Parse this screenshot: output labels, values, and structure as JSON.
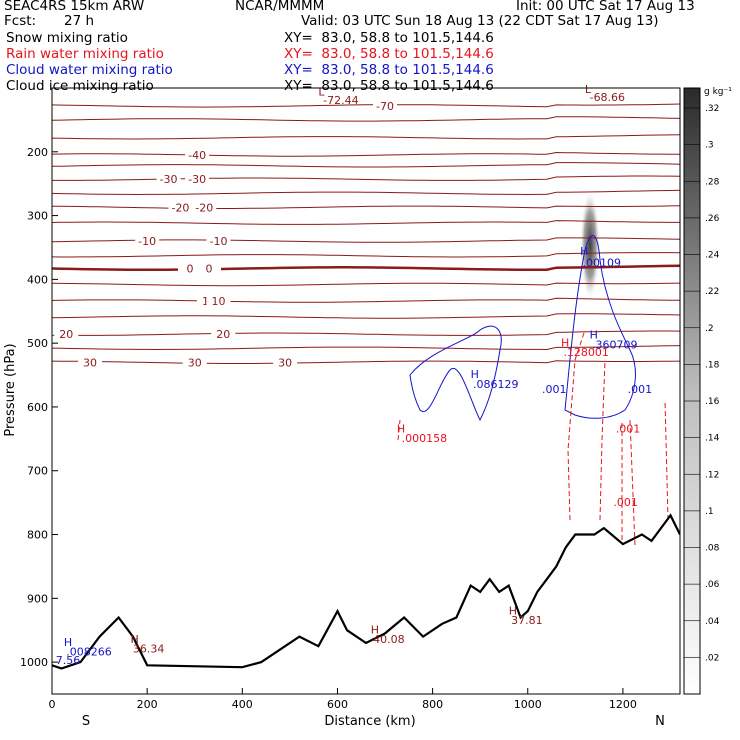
{
  "header": {
    "model": "SEAC4RS 15km ARW",
    "org": "NCAR/MMMM",
    "init": "Init: 00 UTC Sat 17 Aug 13",
    "fcst_label": "Fcst:",
    "fcst_value": "27 h",
    "valid": "Valid: 03 UTC Sun 18 Aug 13 (22 CDT Sat 17 Aug 13)",
    "fields": [
      {
        "name": "Snow mixing ratio",
        "xy": "XY=  83.0, 58.8 to 101.5,144.6",
        "color": "#000000"
      },
      {
        "name": "Rain water mixing ratio",
        "xy": "XY=  83.0, 58.8 to 101.5,144.6",
        "color": "#e8141e"
      },
      {
        "name": "Cloud water mixing ratio",
        "xy": "XY=  83.0, 58.8 to 101.5,144.6",
        "color": "#1414c8"
      },
      {
        "name": "Cloud ice mixing ratio",
        "xy": "XY=  83.0, 58.8 to 101.5,144.6",
        "color": "#000000"
      }
    ]
  },
  "chart_data": {
    "type": "cross-section",
    "xlabel": "Distance (km)",
    "ylabel": "Pressure (hPa)",
    "xlim": [
      0,
      1320
    ],
    "ylim": [
      1050,
      100
    ],
    "x_ticks": [
      0,
      200,
      400,
      600,
      800,
      1000,
      1200
    ],
    "y_ticks": [
      200,
      300,
      400,
      500,
      600,
      700,
      800,
      900,
      1000
    ],
    "x_end_labels": {
      "left": "S",
      "right": "N"
    },
    "colorbar": {
      "unit": "g kg⁻¹",
      "ticks": [
        ".02",
        ".04",
        ".06",
        ".08",
        ".1",
        ".12",
        ".14",
        ".16",
        ".18",
        ".2",
        ".22",
        ".24",
        ".26",
        ".28",
        ".3",
        ".32"
      ]
    },
    "temperature_contours": [
      {
        "level": -70,
        "p": 128,
        "label": "-70",
        "labels_at": [
          [
            700,
            128
          ]
        ]
      },
      {
        "level": -60,
        "p": 150
      },
      {
        "level": -50,
        "p": 178
      },
      {
        "level": -40,
        "p": 205,
        "label": "-40",
        "labels_at": [
          [
            305,
            205
          ]
        ]
      },
      {
        "level": -35,
        "p": 222
      },
      {
        "level": -30,
        "p": 243,
        "label": "-30",
        "labels_at": [
          [
            245,
            243
          ],
          [
            305,
            243
          ]
        ]
      },
      {
        "level": -25,
        "p": 265
      },
      {
        "level": -20,
        "p": 287,
        "label": "-20",
        "labels_at": [
          [
            270,
            287
          ],
          [
            320,
            287
          ]
        ]
      },
      {
        "level": -15,
        "p": 312
      },
      {
        "level": -10,
        "p": 340,
        "label": "-10",
        "labels_at": [
          [
            200,
            340
          ],
          [
            350,
            340
          ]
        ]
      },
      {
        "level": -5,
        "p": 363
      },
      {
        "level": 0,
        "p": 383,
        "label": "0",
        "labels_at": [
          [
            290,
            383
          ],
          [
            330,
            383
          ]
        ],
        "bold": true
      },
      {
        "level": 5,
        "p": 408
      },
      {
        "level": 10,
        "p": 434,
        "label": "10",
        "labels_at": [
          [
            330,
            434
          ],
          [
            350,
            434
          ]
        ]
      },
      {
        "level": 15,
        "p": 459
      },
      {
        "level": 20,
        "p": 486,
        "label": "20",
        "labels_at": [
          [
            30,
            486
          ],
          [
            360,
            486
          ]
        ]
      },
      {
        "level": 25,
        "p": 508
      },
      {
        "level": 30,
        "p": 530,
        "label": "30",
        "labels_at": [
          [
            80,
            530
          ],
          [
            300,
            530
          ],
          [
            490,
            530
          ]
        ]
      }
    ],
    "terrain_pressure": [
      [
        0,
        1005
      ],
      [
        20,
        1010
      ],
      [
        60,
        1000
      ],
      [
        100,
        960
      ],
      [
        140,
        930
      ],
      [
        170,
        960
      ],
      [
        200,
        1005
      ],
      [
        400,
        1008
      ],
      [
        440,
        1000
      ],
      [
        480,
        980
      ],
      [
        520,
        960
      ],
      [
        560,
        975
      ],
      [
        600,
        920
      ],
      [
        620,
        950
      ],
      [
        660,
        970
      ],
      [
        700,
        955
      ],
      [
        740,
        930
      ],
      [
        780,
        960
      ],
      [
        820,
        940
      ],
      [
        850,
        930
      ],
      [
        880,
        880
      ],
      [
        900,
        890
      ],
      [
        920,
        870
      ],
      [
        940,
        890
      ],
      [
        960,
        880
      ],
      [
        985,
        930
      ],
      [
        1000,
        920
      ],
      [
        1020,
        890
      ],
      [
        1040,
        870
      ],
      [
        1060,
        850
      ],
      [
        1080,
        820
      ],
      [
        1100,
        800
      ],
      [
        1140,
        800
      ],
      [
        1160,
        790
      ],
      [
        1200,
        815
      ],
      [
        1240,
        800
      ],
      [
        1260,
        810
      ],
      [
        1300,
        770
      ],
      [
        1320,
        800
      ]
    ],
    "labels": [
      {
        "text": "L",
        "x": 560,
        "p": 112,
        "color": "#8b1a1a"
      },
      {
        "text": "-72.44",
        "x": 570,
        "p": 125,
        "color": "#8b1a1a"
      },
      {
        "text": "L",
        "x": 1120,
        "p": 108,
        "color": "#8b1a1a"
      },
      {
        "text": "-68.66",
        "x": 1130,
        "p": 120,
        "color": "#8b1a1a"
      },
      {
        "text": "H",
        "x": 1110,
        "p": 362,
        "color": "#1414c8"
      },
      {
        "text": ".00109",
        "x": 1115,
        "p": 380,
        "color": "#1414c8"
      },
      {
        "text": "H",
        "x": 1130,
        "p": 493,
        "color": "#1414c8"
      },
      {
        "text": ".360709",
        "x": 1135,
        "p": 508,
        "color": "#1414c8"
      },
      {
        "text": "H",
        "x": 1070,
        "p": 505,
        "color": "#e8141e"
      },
      {
        "text": ".128001",
        "x": 1075,
        "p": 520,
        "color": "#e8141e"
      },
      {
        "text": "H",
        "x": 880,
        "p": 555,
        "color": "#1414c8"
      },
      {
        "text": ".086129",
        "x": 885,
        "p": 570,
        "color": "#1414c8"
      },
      {
        "text": ".001",
        "x": 1030,
        "p": 578,
        "color": "#1414c8"
      },
      {
        "text": ".001",
        "x": 1210,
        "p": 578,
        "color": "#1414c8"
      },
      {
        "text": "H",
        "x": 725,
        "p": 640,
        "color": "#e8141e"
      },
      {
        "text": ".000158",
        "x": 735,
        "p": 655,
        "color": "#e8141e"
      },
      {
        "text": ".001",
        "x": 1185,
        "p": 640,
        "color": "#e8141e"
      },
      {
        "text": ".001",
        "x": 1180,
        "p": 755,
        "color": "#e8141e"
      },
      {
        "text": "H",
        "x": 25,
        "p": 975,
        "color": "#1414c8"
      },
      {
        "text": ".008266",
        "x": 30,
        "p": 990,
        "color": "#1414c8"
      },
      {
        "text": "H",
        "x": 165,
        "p": 970,
        "color": "#8b1a1a"
      },
      {
        "text": "36.34",
        "x": 170,
        "p": 985,
        "color": "#8b1a1a"
      },
      {
        "text": "H",
        "x": 670,
        "p": 955,
        "color": "#8b1a1a"
      },
      {
        "text": "40.08",
        "x": 675,
        "p": 970,
        "color": "#8b1a1a"
      },
      {
        "text": "H",
        "x": 960,
        "p": 925,
        "color": "#8b1a1a"
      },
      {
        "text": "37.81",
        "x": 965,
        "p": 940,
        "color": "#8b1a1a"
      },
      {
        "text": "7.56",
        "x": 8,
        "p": 1003,
        "color": "#1414c8"
      }
    ],
    "colors": {
      "temperature": "#8b1a1a",
      "rain": "#e8141e",
      "cloud_water": "#1414c8",
      "terrain": "#000000"
    }
  }
}
